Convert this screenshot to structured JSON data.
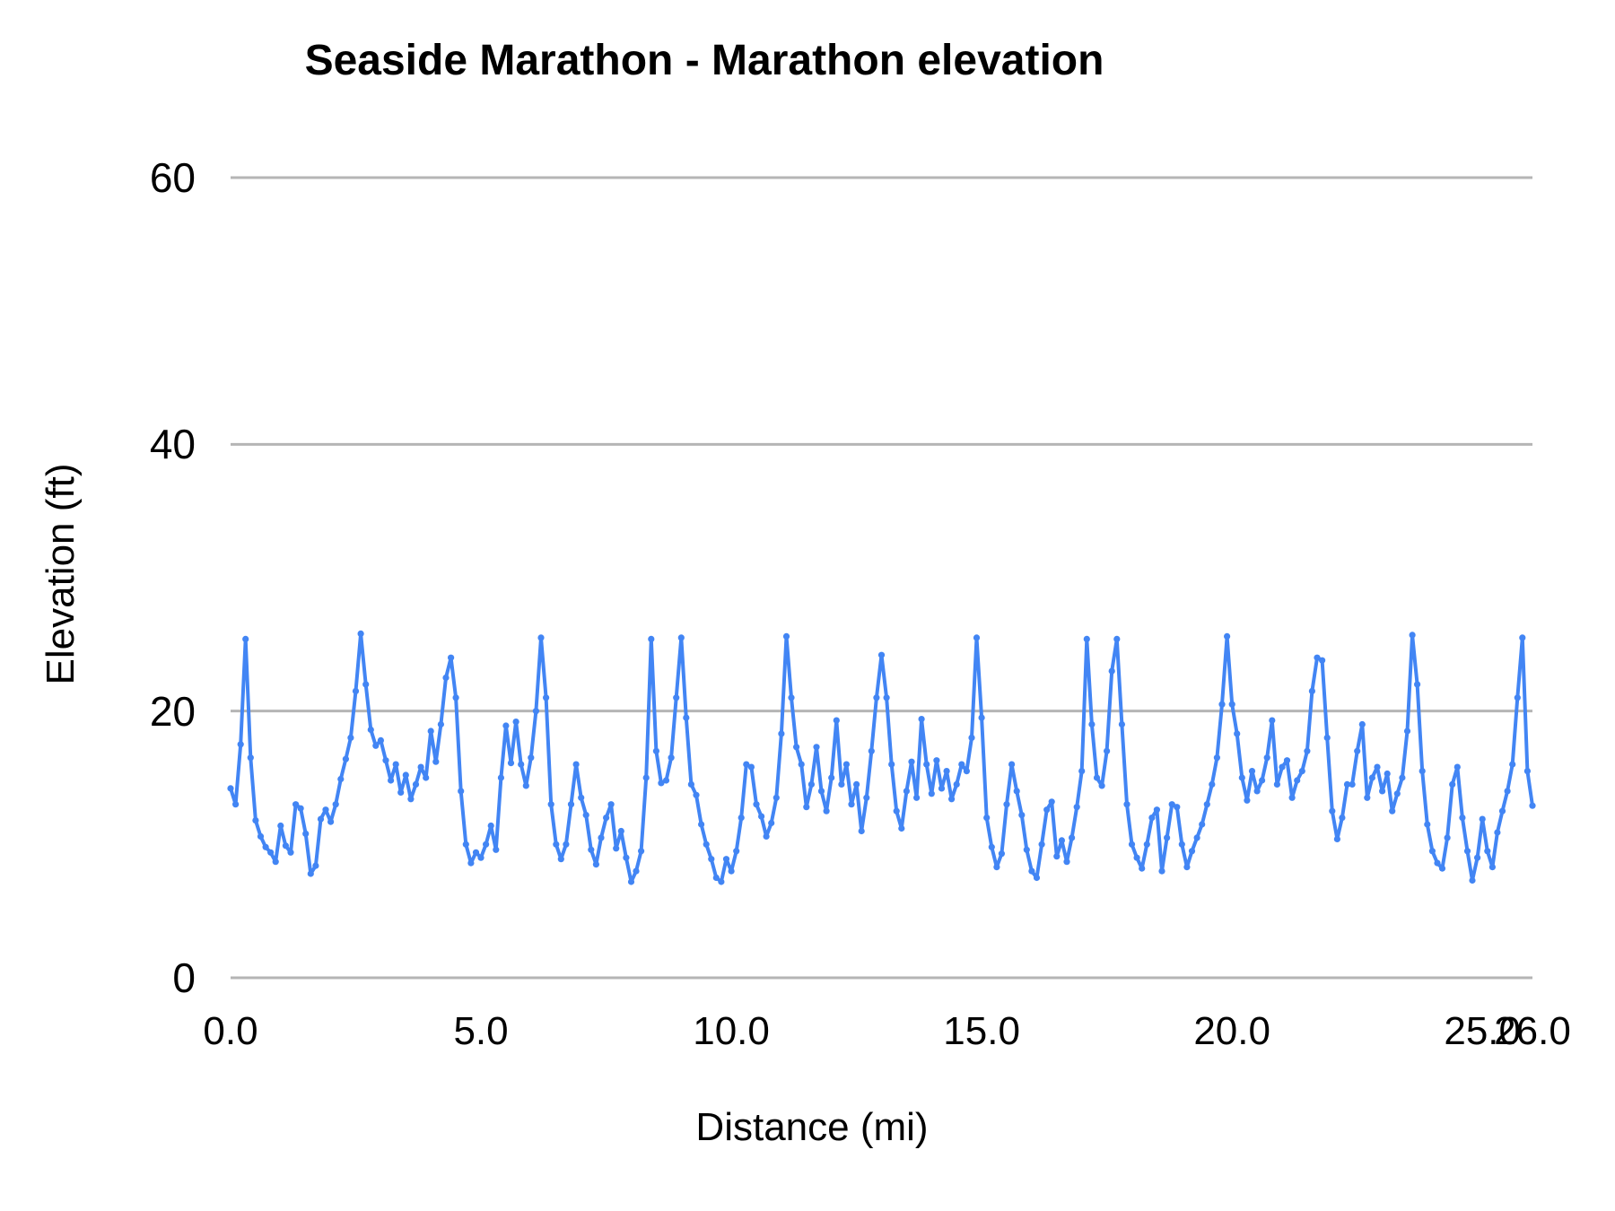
{
  "chart_data": {
    "type": "line",
    "title": "Seaside Marathon - Marathon elevation",
    "xlabel": "Distance (mi)",
    "ylabel": "Elevation (ft)",
    "xlim": [
      0,
      26
    ],
    "ylim": [
      0,
      60
    ],
    "grid": "horizontal-only",
    "legend": "none",
    "x_ticks": [
      {
        "value": 0,
        "label": "0.0"
      },
      {
        "value": 5,
        "label": "5.0"
      },
      {
        "value": 10,
        "label": "10.0"
      },
      {
        "value": 15,
        "label": "15.0"
      },
      {
        "value": 20,
        "label": "20.0"
      },
      {
        "value": 25,
        "label": "25.0"
      },
      {
        "value": 26,
        "label": "26.0"
      }
    ],
    "y_ticks": [
      {
        "value": 0,
        "label": "0"
      },
      {
        "value": 20,
        "label": "20"
      },
      {
        "value": 40,
        "label": "40"
      },
      {
        "value": 60,
        "label": "60"
      }
    ],
    "series": [
      {
        "name": "Marathon elevation",
        "color": "#4285f4",
        "marker": "circle",
        "x_start": 0,
        "x_step": 0.1,
        "values": [
          14.2,
          13.0,
          17.5,
          25.4,
          16.5,
          11.8,
          10.6,
          9.8,
          9.4,
          8.7,
          11.4,
          9.9,
          9.4,
          13.0,
          12.7,
          10.8,
          7.8,
          8.4,
          11.9,
          12.6,
          11.7,
          13.0,
          14.9,
          16.4,
          18.0,
          21.5,
          25.8,
          22.0,
          18.6,
          17.4,
          17.8,
          16.3,
          14.8,
          16.0,
          13.9,
          15.2,
          13.4,
          14.5,
          15.8,
          15.0,
          18.5,
          16.2,
          19.0,
          22.5,
          24.0,
          21.0,
          14.0,
          10.0,
          8.6,
          9.4,
          9.0,
          10.0,
          11.4,
          9.6,
          15.0,
          18.9,
          16.1,
          19.2,
          16.0,
          14.4,
          16.5,
          20.0,
          25.5,
          21.0,
          13.0,
          10.0,
          8.9,
          10.0,
          13.0,
          16.0,
          13.5,
          12.2,
          9.6,
          8.5,
          10.5,
          12.0,
          13.0,
          9.7,
          11.0,
          9.0,
          7.2,
          8.0,
          9.5,
          15.0,
          25.4,
          17.0,
          14.6,
          14.8,
          16.5,
          21.0,
          25.5,
          19.5,
          14.5,
          13.7,
          11.5,
          10.0,
          8.9,
          7.5,
          7.2,
          8.9,
          8.0,
          9.5,
          12.0,
          16.0,
          15.8,
          13.0,
          12.1,
          10.6,
          11.6,
          13.5,
          18.3,
          25.6,
          21.0,
          17.3,
          16.0,
          12.8,
          14.5,
          17.3,
          14.0,
          12.5,
          15.0,
          19.3,
          14.5,
          16.0,
          13.0,
          14.5,
          11.0,
          13.5,
          17.0,
          21.0,
          24.2,
          21.0,
          16.0,
          12.5,
          11.2,
          14.0,
          16.2,
          13.5,
          19.4,
          16.0,
          13.8,
          16.3,
          14.2,
          15.5,
          13.4,
          14.5,
          16.0,
          15.5,
          18.0,
          25.5,
          19.5,
          12.0,
          9.8,
          8.3,
          9.3,
          13.0,
          16.0,
          14.0,
          12.2,
          9.6,
          8.0,
          7.5,
          10.0,
          12.6,
          13.2,
          9.1,
          10.3,
          8.7,
          10.5,
          12.8,
          15.5,
          25.4,
          19.0,
          15.0,
          14.4,
          17.0,
          23.0,
          25.4,
          19.0,
          13.0,
          10.0,
          9.0,
          8.2,
          10.0,
          12.0,
          12.6,
          8.0,
          10.5,
          13.0,
          12.8,
          10.0,
          8.3,
          9.5,
          10.5,
          11.5,
          13.0,
          14.5,
          16.5,
          20.5,
          25.6,
          20.5,
          18.3,
          15.0,
          13.3,
          15.5,
          14.0,
          14.8,
          16.5,
          19.3,
          14.5,
          15.8,
          16.3,
          13.5,
          14.8,
          15.5,
          17.0,
          21.5,
          24.0,
          23.8,
          18.0,
          12.5,
          10.4,
          12.0,
          14.5,
          14.5,
          17.0,
          19.0,
          13.5,
          15.0,
          15.8,
          14.0,
          15.3,
          12.5,
          13.8,
          15.0,
          18.5,
          25.7,
          22.0,
          15.5,
          11.5,
          9.5,
          8.6,
          8.2,
          10.5,
          14.5,
          15.8,
          12.0,
          9.5,
          7.3,
          9.0,
          11.9,
          9.5,
          8.3,
          10.9,
          12.5,
          14.0,
          16.0,
          21.0,
          25.5,
          15.5,
          12.9
        ]
      }
    ]
  },
  "colors": {
    "line": "#4285f4",
    "gridline": "#b5b5b5",
    "text": "#000000",
    "background": "#ffffff"
  }
}
